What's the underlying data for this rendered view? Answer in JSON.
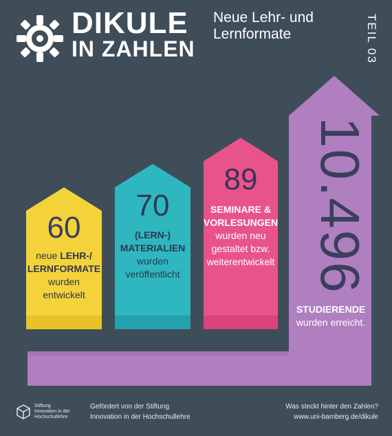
{
  "header": {
    "brand_line1": "DIKULE",
    "brand_line2": "IN ZAHLEN",
    "subtitle_line1": "Neue Lehr- und",
    "subtitle_line2": "Lernformate",
    "part": "TEIL 03"
  },
  "stats": {
    "formate": {
      "number": "60",
      "pre": "neue",
      "bold1": "LEHR-/",
      "bold2": "LERNFORMATE",
      "line3": "wurden",
      "line4": "entwickelt",
      "color": "#f4d33a"
    },
    "materialien": {
      "number": "70",
      "bold1": "(LERN-)",
      "bold2": "MATERIALIEN",
      "line3": "wurden",
      "line4": "veröffentlicht",
      "color": "#2fb7c0"
    },
    "seminare": {
      "number": "89",
      "bold1": "SEMINARE &",
      "bold2": "VORLESUNGEN",
      "line3": "wurden neu",
      "line4": "gestaltet bzw.",
      "line5": "weiterentwickelt",
      "color": "#e8548a"
    },
    "studierende": {
      "number": "10.496",
      "bold1": "STUDIERENDE",
      "line2": "wurden erreicht.",
      "color": "#b07fc0"
    }
  },
  "footer": {
    "logo_line1": "Stiftung",
    "logo_line2": "Innovation in der",
    "logo_line3": "Hochschullehre",
    "center_line1": "Gefördert von der Stiftung",
    "center_line2": "Innovation in der Hochschullehre",
    "right_line1": "Was steckt hinter den Zahlen?",
    "right_line2": "www.uni-bamberg.de/dikule"
  }
}
